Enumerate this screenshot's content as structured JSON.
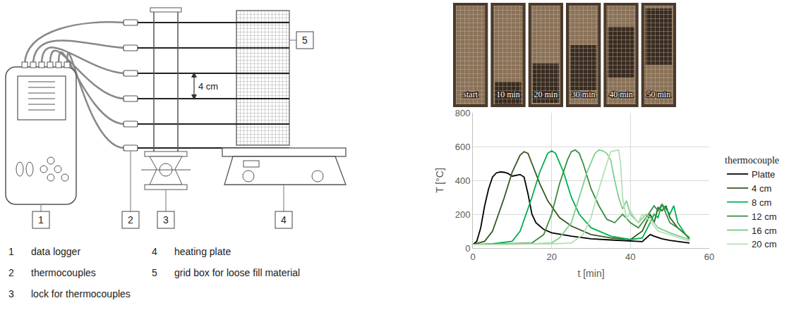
{
  "diagram": {
    "labels": [
      {
        "number": "1",
        "text": "data logger"
      },
      {
        "number": "2",
        "text": "thermocouples"
      },
      {
        "number": "3",
        "text": "lock for thermocouples"
      },
      {
        "number": "4",
        "text": "heating plate"
      },
      {
        "number": "5",
        "text": "grid box for loose fill material"
      }
    ],
    "dimension": "4 cm"
  },
  "photos": {
    "labels": [
      "start",
      "10 min",
      "20 min",
      "30 min",
      "40 min",
      "50 min"
    ]
  },
  "chart_data": {
    "type": "line",
    "x_label": "t [min]",
    "y_label": "T [°C]",
    "legend_title": "thermocouple",
    "legend": "right",
    "grid": true,
    "xlim": [
      0,
      60
    ],
    "xticks": [
      0,
      20,
      40,
      60
    ],
    "ylim": [
      0,
      800
    ],
    "yticks": [
      0,
      200,
      400,
      600,
      800
    ],
    "series": [
      {
        "name": "Platte",
        "color": "#000000",
        "x": [
          0,
          1,
          2,
          3,
          4,
          5,
          6,
          7,
          8,
          9,
          10,
          11,
          12,
          13,
          14,
          15,
          16,
          18,
          20,
          25,
          30,
          35,
          40,
          43,
          45,
          46,
          48,
          50,
          55
        ],
        "values": [
          20,
          40,
          120,
          250,
          350,
          420,
          445,
          450,
          448,
          440,
          425,
          430,
          435,
          420,
          320,
          200,
          150,
          110,
          90,
          70,
          55,
          48,
          40,
          38,
          80,
          70,
          55,
          45,
          30
        ]
      },
      {
        "name": "4 cm",
        "color": "#385723",
        "x": [
          0,
          3,
          5,
          8,
          10,
          12,
          13,
          14,
          15,
          17,
          19,
          22,
          25,
          30,
          35,
          40,
          43,
          45,
          46,
          47,
          48,
          49,
          50,
          52,
          55
        ],
        "values": [
          20,
          40,
          100,
          300,
          450,
          550,
          570,
          560,
          500,
          380,
          280,
          180,
          130,
          80,
          60,
          50,
          100,
          200,
          150,
          240,
          220,
          250,
          180,
          120,
          60
        ]
      },
      {
        "name": "8 cm",
        "color": "#00b050",
        "x": [
          0,
          5,
          10,
          12,
          15,
          17,
          19,
          20,
          21,
          23,
          25,
          27,
          30,
          35,
          40,
          43,
          45,
          46,
          47,
          48,
          49,
          50,
          51,
          52,
          54,
          55
        ],
        "values": [
          20,
          25,
          40,
          100,
          300,
          450,
          560,
          575,
          560,
          450,
          300,
          200,
          120,
          70,
          50,
          60,
          150,
          200,
          180,
          260,
          230,
          200,
          250,
          150,
          80,
          50
        ]
      },
      {
        "name": "12 cm",
        "color": "#3c8d40",
        "x": [
          0,
          10,
          15,
          18,
          20,
          22,
          24,
          25,
          26,
          27,
          28,
          30,
          32,
          34,
          36,
          38,
          40,
          42,
          44,
          46,
          47,
          48,
          50,
          52,
          55
        ],
        "values": [
          20,
          25,
          30,
          80,
          200,
          380,
          520,
          570,
          580,
          560,
          500,
          350,
          250,
          170,
          150,
          200,
          150,
          120,
          180,
          250,
          220,
          260,
          150,
          120,
          60
        ]
      },
      {
        "name": "16 cm",
        "color": "#7fcf8f",
        "x": [
          0,
          15,
          20,
          22,
          25,
          27,
          29,
          31,
          32,
          33,
          34,
          35,
          36,
          37,
          38,
          39,
          40,
          42,
          44,
          45,
          47,
          50,
          55
        ],
        "values": [
          20,
          25,
          30,
          60,
          150,
          300,
          450,
          560,
          580,
          575,
          560,
          520,
          400,
          300,
          230,
          280,
          200,
          150,
          200,
          180,
          120,
          90,
          50
        ]
      },
      {
        "name": "20 cm",
        "color": "#b5e0b5",
        "x": [
          0,
          20,
          25,
          28,
          30,
          32,
          34,
          35,
          36,
          37,
          37.5,
          38,
          39,
          40,
          41,
          42,
          43,
          45,
          47,
          50,
          55
        ],
        "values": [
          20,
          25,
          30,
          80,
          180,
          350,
          500,
          570,
          575,
          580,
          500,
          300,
          170,
          220,
          180,
          150,
          200,
          160,
          100,
          80,
          40
        ]
      }
    ]
  }
}
